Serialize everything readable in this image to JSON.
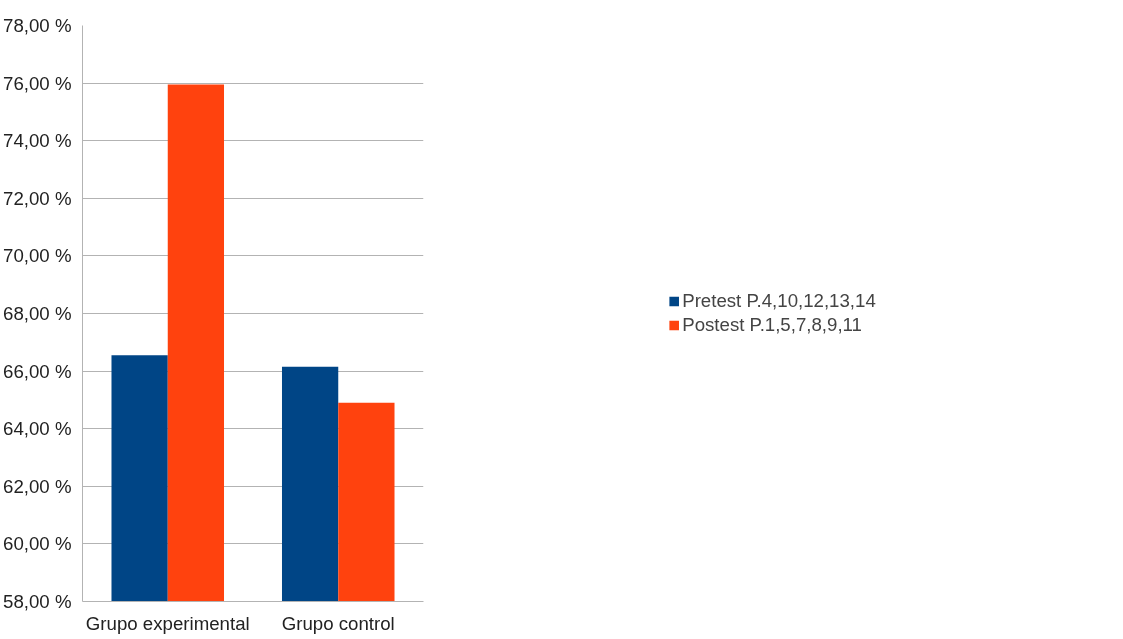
{
  "chart_data": {
    "type": "bar",
    "categories": [
      "Grupo experimental",
      "Grupo control"
    ],
    "series": [
      {
        "name": "Pretest P.4,10,12,13,14",
        "color": "#004586",
        "values": [
          66.55,
          66.15
        ]
      },
      {
        "name": "Postest P.1,5,7,8,9,11",
        "color": "#ff420e",
        "values": [
          75.95,
          64.9
        ]
      }
    ],
    "ylim": [
      58,
      78
    ],
    "yticks": [
      {
        "value": 58,
        "label": "58,00 %"
      },
      {
        "value": 60,
        "label": "60,00 %"
      },
      {
        "value": 62,
        "label": "62,00 %"
      },
      {
        "value": 64,
        "label": "64,00 %"
      },
      {
        "value": 66,
        "label": "66,00 %"
      },
      {
        "value": 68,
        "label": "68,00 %"
      },
      {
        "value": 70,
        "label": "70,00 %"
      },
      {
        "value": 72,
        "label": "72,00 %"
      },
      {
        "value": 74,
        "label": "74,00 %"
      },
      {
        "value": 76,
        "label": "76,00 %"
      },
      {
        "value": 78,
        "label": "78,00 %"
      }
    ],
    "grid": "y",
    "legend": "right"
  }
}
